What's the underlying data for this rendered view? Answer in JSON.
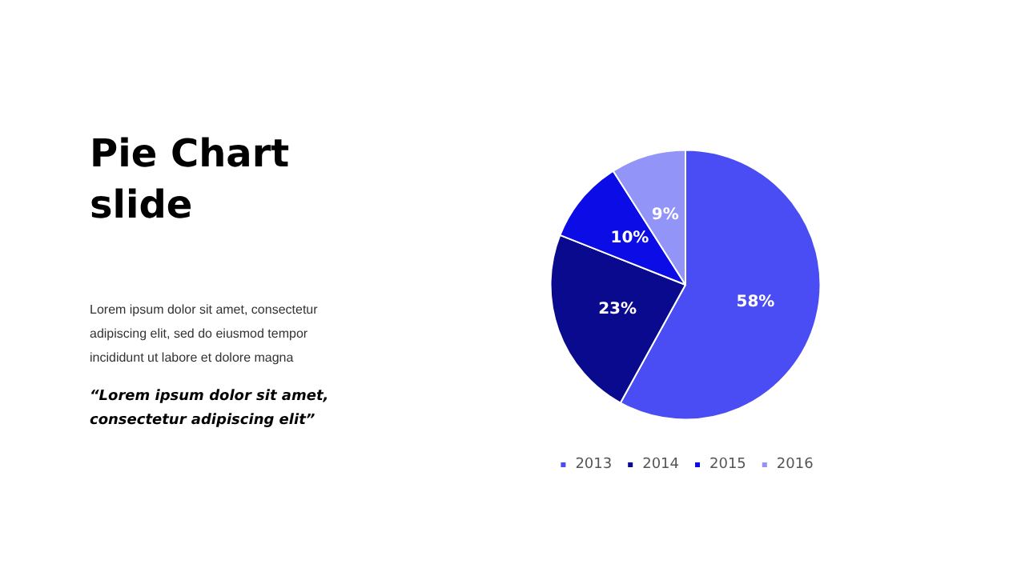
{
  "chart_data": {
    "type": "pie",
    "title": "Pie Chart slide",
    "annotations": [
      "Lorem ipsum dolor sit amet, consectetur adipiscing elit, sed do eiusmod tempor incididunt ut labore et dolore magna",
      "“Lorem ipsum dolor sit amet, consectetur adipiscing elit”"
    ],
    "categories": [
      "2013",
      "2014",
      "2015",
      "2016"
    ],
    "values": [
      58,
      23,
      10,
      9
    ],
    "colors": [
      "#4a4cf4",
      "#0a0a8e",
      "#0c0ce6",
      "#9294f8"
    ],
    "value_labels": [
      "58%",
      "23%",
      "10%",
      "9%"
    ],
    "legend": "bottom"
  }
}
